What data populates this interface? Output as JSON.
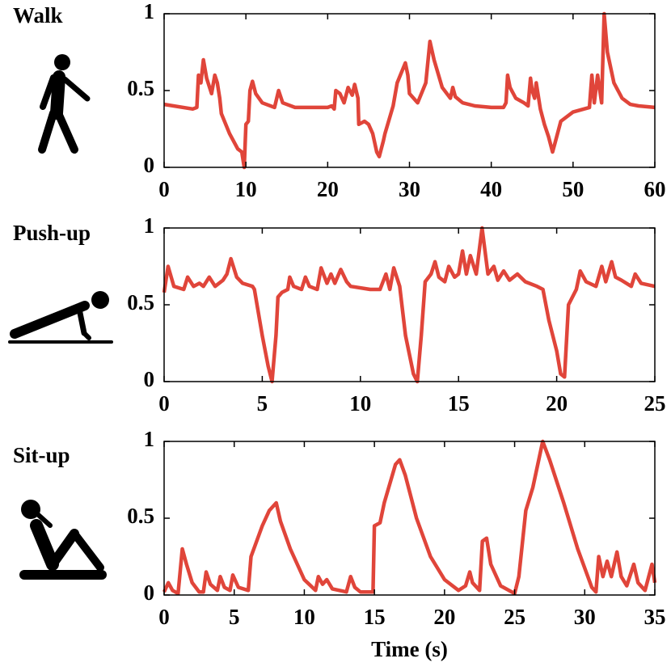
{
  "chart_data": [
    {
      "type": "line",
      "title": "Walk",
      "color": "#e0453a",
      "x": [
        0,
        3.5,
        4,
        4.2,
        4.5,
        4.8,
        5.2,
        5.8,
        6.2,
        6.5,
        6.8,
        7,
        8,
        9,
        9.5,
        9.8,
        10,
        10.3,
        10.5,
        10.8,
        11.2,
        12,
        13.5,
        14,
        14.5,
        16,
        20,
        20.5,
        20.8,
        21,
        21.5,
        22,
        22.5,
        23,
        23.3,
        23.7,
        23.8,
        24.5,
        25,
        25.5,
        26,
        26.3,
        26.8,
        27,
        28,
        28.5,
        29.5,
        29.8,
        30,
        30.5,
        31,
        32,
        32.5,
        33,
        34,
        35,
        35.3,
        35.6,
        36.5,
        38,
        40,
        41.5,
        41.8,
        42,
        42.3,
        43,
        44,
        44.5,
        44.8,
        45,
        45.3,
        45.5,
        46,
        46.5,
        47,
        47.5,
        47.8,
        48.5,
        50,
        52,
        52.3,
        52.6,
        53,
        53.5,
        53.8,
        54.2,
        55,
        56,
        57,
        58,
        60
      ],
      "values": [
        0.41,
        0.38,
        0.39,
        0.6,
        0.55,
        0.7,
        0.58,
        0.48,
        0.6,
        0.55,
        0.45,
        0.35,
        0.22,
        0.12,
        0.1,
        0,
        0.28,
        0.3,
        0.5,
        0.56,
        0.48,
        0.42,
        0.39,
        0.5,
        0.42,
        0.39,
        0.39,
        0.4,
        0.38,
        0.5,
        0.48,
        0.42,
        0.52,
        0.47,
        0.54,
        0.45,
        0.28,
        0.3,
        0.28,
        0.22,
        0.1,
        0.07,
        0.17,
        0.22,
        0.4,
        0.55,
        0.68,
        0.6,
        0.48,
        0.45,
        0.42,
        0.55,
        0.82,
        0.7,
        0.52,
        0.45,
        0.52,
        0.46,
        0.42,
        0.4,
        0.39,
        0.39,
        0.42,
        0.6,
        0.52,
        0.45,
        0.42,
        0.4,
        0.58,
        0.5,
        0.45,
        0.55,
        0.38,
        0.28,
        0.2,
        0.1,
        0.16,
        0.3,
        0.36,
        0.39,
        0.6,
        0.42,
        0.6,
        0.42,
        1.0,
        0.75,
        0.55,
        0.45,
        0.41,
        0.4,
        0.39
      ],
      "xlim": [
        0,
        60
      ],
      "ylim": [
        0,
        1
      ],
      "xticks": [
        0,
        10,
        20,
        30,
        40,
        50,
        60
      ],
      "yticks": [
        0,
        0.5,
        1
      ]
    },
    {
      "type": "line",
      "title": "Push-up",
      "color": "#e0453a",
      "x": [
        0,
        0.2,
        0.5,
        1,
        1.2,
        1.5,
        1.8,
        2,
        2.3,
        2.6,
        3,
        3.2,
        3.4,
        3.7,
        4,
        4.5,
        4.6,
        5,
        5.3,
        5.5,
        5.7,
        5.8,
        6,
        6.3,
        6.4,
        6.6,
        7,
        7.2,
        7.4,
        7.8,
        8,
        8.3,
        8.5,
        8.7,
        9,
        9.3,
        9.5,
        10.5,
        11,
        11.3,
        11.5,
        11.7,
        12,
        12.3,
        12.7,
        12.9,
        13.1,
        13.3,
        13.6,
        13.8,
        14,
        14.3,
        14.5,
        14.8,
        15,
        15.2,
        15.4,
        15.6,
        15.9,
        16.2,
        16.5,
        16.8,
        17,
        17.3,
        17.6,
        18,
        18.4,
        19,
        19.3,
        19.6,
        20,
        20.2,
        20.4,
        20.6,
        21,
        21.2,
        21.5,
        22,
        22.3,
        22.5,
        22.8,
        23,
        23.3,
        23.8,
        24,
        24.3,
        25
      ],
      "values": [
        0.58,
        0.75,
        0.62,
        0.6,
        0.68,
        0.62,
        0.64,
        0.62,
        0.68,
        0.62,
        0.66,
        0.7,
        0.8,
        0.68,
        0.64,
        0.62,
        0.6,
        0.3,
        0.1,
        0,
        0.3,
        0.55,
        0.58,
        0.6,
        0.68,
        0.62,
        0.6,
        0.68,
        0.62,
        0.6,
        0.74,
        0.64,
        0.7,
        0.64,
        0.73,
        0.65,
        0.62,
        0.6,
        0.6,
        0.7,
        0.6,
        0.74,
        0.62,
        0.3,
        0.05,
        0,
        0.3,
        0.65,
        0.7,
        0.78,
        0.68,
        0.65,
        0.75,
        0.68,
        0.7,
        0.85,
        0.7,
        0.82,
        0.7,
        1.0,
        0.7,
        0.75,
        0.66,
        0.72,
        0.66,
        0.7,
        0.65,
        0.62,
        0.6,
        0.4,
        0.2,
        0.05,
        0.03,
        0.5,
        0.6,
        0.72,
        0.65,
        0.62,
        0.75,
        0.65,
        0.78,
        0.68,
        0.66,
        0.62,
        0.7,
        0.64,
        0.62
      ],
      "xlim": [
        0,
        25
      ],
      "ylim": [
        0,
        1
      ],
      "xticks": [
        0,
        5,
        10,
        15,
        20,
        25
      ],
      "yticks": [
        0,
        0.5,
        1
      ]
    },
    {
      "type": "line",
      "title": "Sit-up",
      "xlabel": "Time (s)",
      "color": "#e0453a",
      "x": [
        0,
        0.3,
        0.6,
        1,
        1.3,
        1.6,
        2,
        2.5,
        2.8,
        3,
        3.3,
        3.8,
        4,
        4.3,
        4.7,
        4.9,
        5.3,
        6,
        6.2,
        7,
        7.5,
        8,
        8.3,
        9,
        10,
        10.8,
        11,
        11.3,
        11.6,
        12,
        13,
        13.3,
        13.6,
        14,
        14.9,
        15,
        15.4,
        15.7,
        16.5,
        16.8,
        17.2,
        18,
        19,
        20,
        21,
        21.5,
        21.8,
        22,
        22.5,
        22.7,
        23,
        23.3,
        24,
        25,
        25.3,
        25.8,
        26.3,
        27,
        27.5,
        28.5,
        29.5,
        30.5,
        30.8,
        31,
        31.3,
        31.6,
        31.9,
        32.3,
        32.6,
        33,
        33.5,
        33.8,
        34.3,
        34.8,
        35
      ],
      "values": [
        0.02,
        0.08,
        0.03,
        0.01,
        0.3,
        0.2,
        0.08,
        0.02,
        0.02,
        0.15,
        0.07,
        0.03,
        0.12,
        0.05,
        0.03,
        0.13,
        0.05,
        0.03,
        0.25,
        0.45,
        0.55,
        0.6,
        0.48,
        0.3,
        0.1,
        0.03,
        0.12,
        0.07,
        0.1,
        0.04,
        0.02,
        0.12,
        0.05,
        0.02,
        0.02,
        0.45,
        0.47,
        0.6,
        0.85,
        0.88,
        0.78,
        0.5,
        0.25,
        0.1,
        0.03,
        0.06,
        0.15,
        0.08,
        0.03,
        0.35,
        0.37,
        0.2,
        0.06,
        0.01,
        0.12,
        0.55,
        0.7,
        1.0,
        0.88,
        0.6,
        0.3,
        0.05,
        0.02,
        0.25,
        0.12,
        0.22,
        0.12,
        0.28,
        0.12,
        0.06,
        0.2,
        0.08,
        0.03,
        0.2,
        0.08
      ],
      "xlim": [
        0,
        35
      ],
      "ylim": [
        0,
        1
      ],
      "xticks": [
        0,
        5,
        10,
        15,
        20,
        25,
        30,
        35
      ],
      "yticks": [
        0,
        0.5,
        1
      ]
    }
  ]
}
